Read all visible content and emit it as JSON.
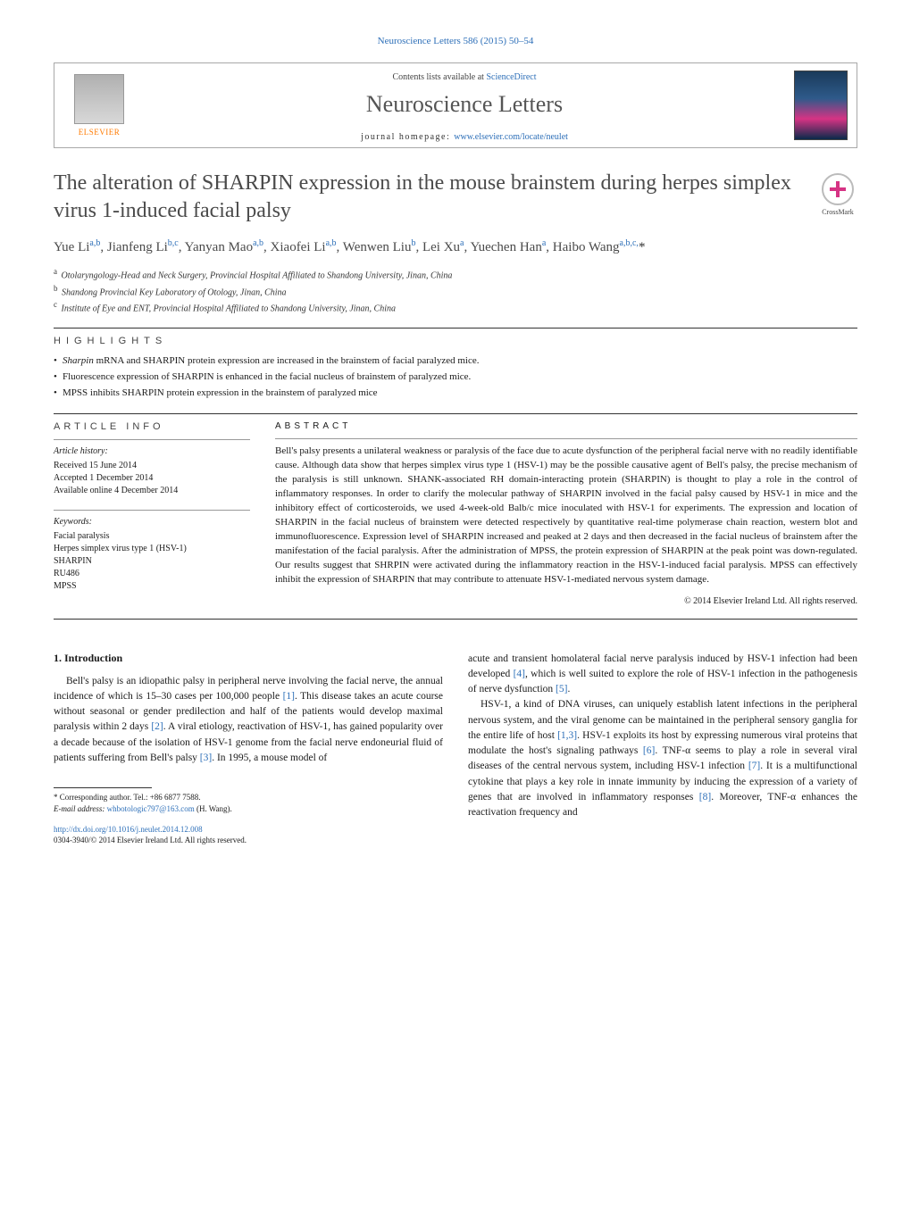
{
  "journal_ref": "Neuroscience Letters 586 (2015) 50–54",
  "header": {
    "contents_prefix": "Contents lists available at ",
    "contents_link": "ScienceDirect",
    "journal_name": "Neuroscience Letters",
    "homepage_prefix": "journal homepage: ",
    "homepage_url": "www.elsevier.com/locate/neulet",
    "publisher": "ELSEVIER"
  },
  "crossmark": "CrossMark",
  "title": "The alteration of SHARPIN expression in the mouse brainstem during herpes simplex virus 1-induced facial palsy",
  "authors_html": "Yue Li<sup>a,b</sup>, Jianfeng Li<sup>b,c</sup>, Yanyan Mao<sup>a,b</sup>, Xiaofei Li<sup>a,b</sup>, Wenwen Liu<sup>b</sup>, Lei Xu<sup>a</sup>, Yuechen Han<sup>a</sup>, Haibo Wang<sup>a,b,c,</sup><span class='star'>*</span>",
  "affiliations": [
    {
      "key": "a",
      "text": "Otolaryngology-Head and Neck Surgery, Provincial Hospital Affiliated to Shandong University, Jinan, China"
    },
    {
      "key": "b",
      "text": "Shandong Provincial Key Laboratory of Otology, Jinan, China"
    },
    {
      "key": "c",
      "text": "Institute of Eye and ENT, Provincial Hospital Affiliated to Shandong University, Jinan, China"
    }
  ],
  "highlights": {
    "heading": "HIGHLIGHTS",
    "items": [
      "Sharpin mRNA and SHARPIN protein expression are increased in the brainstem of facial paralyzed mice.",
      "Fluorescence expression of SHARPIN is enhanced in the facial nucleus of brainstem of paralyzed mice.",
      "MPSS inhibits SHARPIN protein expression in the brainstem of paralyzed mice"
    ]
  },
  "article_info": {
    "heading": "ARTICLE INFO",
    "history_label": "Article history:",
    "history": [
      "Received 15 June 2014",
      "Accepted 1 December 2014",
      "Available online 4 December 2014"
    ],
    "keywords_label": "Keywords:",
    "keywords": [
      "Facial paralysis",
      "Herpes simplex virus type 1 (HSV-1)",
      "SHARPIN",
      "RU486",
      "MPSS"
    ]
  },
  "abstract": {
    "heading": "ABSTRACT",
    "text": "Bell's palsy presents a unilateral weakness or paralysis of the face due to acute dysfunction of the peripheral facial nerve with no readily identifiable cause. Although data show that herpes simplex virus type 1 (HSV-1) may be the possible causative agent of Bell's palsy, the precise mechanism of the paralysis is still unknown. SHANK-associated RH domain-interacting protein (SHARPIN) is thought to play a role in the control of inflammatory responses. In order to clarify the molecular pathway of SHARPIN involved in the facial palsy caused by HSV-1 in mice and the inhibitory effect of corticosteroids, we used 4-week-old Balb/c mice inoculated with HSV-1 for experiments. The expression and location of SHARPIN in the facial nucleus of brainstem were detected respectively by quantitative real-time polymerase chain reaction, western blot and immunofluorescence. Expression level of SHARPIN increased and peaked at 2 days and then decreased in the facial nucleus of brainstem after the manifestation of the facial paralysis. After the administration of MPSS, the protein expression of SHARPIN at the peak point was down-regulated. Our results suggest that SHRPIN were activated during the inflammatory reaction in the HSV-1-induced facial paralysis. MPSS can effectively inhibit the expression of SHARPIN that may contribute to attenuate HSV-1-mediated nervous system damage.",
    "copyright": "© 2014 Elsevier Ireland Ltd. All rights reserved."
  },
  "body": {
    "intro_heading": "1. Introduction",
    "col1_p1": "Bell's palsy is an idiopathic palsy in peripheral nerve involving the facial nerve, the annual incidence of which is 15–30 cases per 100,000 people [1]. This disease takes an acute course without seasonal or gender predilection and half of the patients would develop maximal paralysis within 2 days [2]. A viral etiology, reactivation of HSV-1, has gained popularity over a decade because of the isolation of HSV-1 genome from the facial nerve endoneurial fluid of patients suffering from Bell's palsy [3]. In 1995, a mouse model of",
    "col2_p1": "acute and transient homolateral facial nerve paralysis induced by HSV-1 infection had been developed [4], which is well suited to explore the role of HSV-1 infection in the pathogenesis of nerve dysfunction [5].",
    "col2_p2": "HSV-1, a kind of DNA viruses, can uniquely establish latent infections in the peripheral nervous system, and the viral genome can be maintained in the peripheral sensory ganglia for the entire life of host [1,3]. HSV-1 exploits its host by expressing numerous viral proteins that modulate the host's signaling pathways [6]. TNF-α seems to play a role in several viral diseases of the central nervous system, including HSV-1 infection [7]. It is a multifunctional cytokine that plays a key role in innate immunity by inducing the expression of a variety of genes that are involved in inflammatory responses [8]. Moreover, TNF-α enhances the reactivation frequency and"
  },
  "footnote": {
    "corr": "* Corresponding author. Tel.: +86 6877 7588.",
    "email_label": "E-mail address: ",
    "email": "whbotologic797@163.com",
    "email_suffix": " (H. Wang)."
  },
  "doi": "http://dx.doi.org/10.1016/j.neulet.2014.12.008",
  "issn": "0304-3940/© 2014 Elsevier Ireland Ltd. All rights reserved.",
  "refs": {
    "r1": "[1]",
    "r2": "[2]",
    "r3": "[3]",
    "r4": "[4]",
    "r5": "[5]",
    "r6": "[6]",
    "r7": "[7]",
    "r8": "[8]",
    "r13": "[1,3]"
  },
  "colors": {
    "link": "#2d6fb8",
    "heading_gray": "#4a4a4a",
    "orange": "#ff7a00"
  }
}
